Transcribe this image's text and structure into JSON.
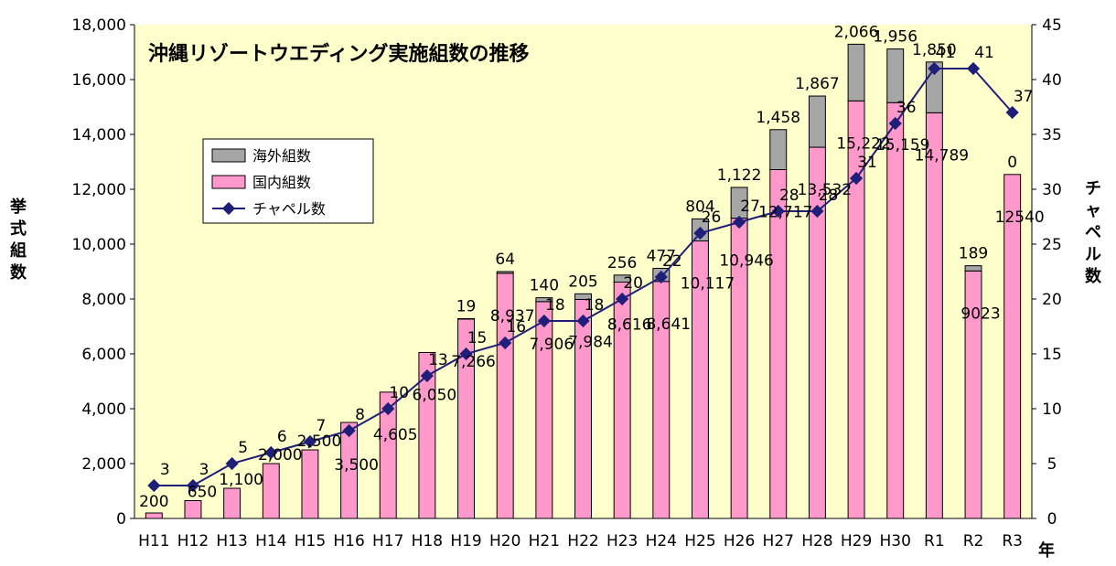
{
  "chart_data": {
    "type": "bar",
    "title": "沖縄リゾートウエディング実施組数の推移",
    "xlabel": "年",
    "ylabel_left": "挙式組数",
    "ylabel_right": "チャペル数",
    "categories": [
      "H11",
      "H12",
      "H13",
      "H14",
      "H15",
      "H16",
      "H17",
      "H18",
      "H19",
      "H20",
      "H21",
      "H22",
      "H23",
      "H24",
      "H25",
      "H26",
      "H27",
      "H28",
      "H29",
      "H30",
      "R1",
      "R2",
      "R3"
    ],
    "ylim_left": [
      0,
      18000
    ],
    "yticks_left": [
      "0",
      "2,000",
      "4,000",
      "6,000",
      "8,000",
      "10,000",
      "12,000",
      "14,000",
      "16,000",
      "18,000"
    ],
    "ylim_right": [
      0,
      45
    ],
    "yticks_right": [
      "0",
      "5",
      "10",
      "15",
      "20",
      "25",
      "30",
      "35",
      "40",
      "45"
    ],
    "series": [
      {
        "name": "国内組数",
        "color": "#ff99cc",
        "values": [
          200,
          650,
          1100,
          2000,
          2500,
          3500,
          4605,
          6050,
          7266,
          8937,
          7906,
          7984,
          8616,
          8641,
          10117,
          10946,
          12717,
          13532,
          15222,
          15159,
          14789,
          9023,
          12540
        ],
        "labels": [
          "200",
          "650",
          "1,100",
          "2,000",
          "2,500",
          "3,500",
          "4,605",
          "6,050",
          "7,266",
          "8,937",
          "7,906",
          "7,984",
          "8,616",
          "8,641",
          "10,117",
          "10,946",
          "12,717",
          "13,532",
          "15,222",
          "15,159",
          "14,789",
          "9023",
          "12540"
        ]
      },
      {
        "name": "海外組数",
        "color": "#a6a6a6",
        "values": [
          0,
          0,
          0,
          0,
          0,
          0,
          0,
          0,
          19,
          64,
          140,
          205,
          256,
          477,
          804,
          1122,
          1458,
          1867,
          2066,
          1956,
          1850,
          189,
          0
        ],
        "labels": [
          "",
          "",
          "",
          "",
          "",
          "",
          "",
          "",
          "19",
          "64",
          "140",
          "205",
          "256",
          "477",
          "804",
          "1,122",
          "1,458",
          "1,867",
          "2,066",
          "1,956",
          "1,850",
          "189",
          "0"
        ]
      },
      {
        "name": "チャペル数",
        "color": "#1f1f7a",
        "axis": "right",
        "values": [
          3,
          3,
          5,
          6,
          7,
          8,
          10,
          13,
          15,
          16,
          18,
          18,
          20,
          22,
          26,
          27,
          28,
          28,
          31,
          36,
          41,
          41,
          37
        ],
        "labels": [
          "3",
          "3",
          "5",
          "6",
          "7",
          "8",
          "10",
          "13",
          "15",
          "16",
          "18",
          "18",
          "20",
          "22",
          "26",
          "27",
          "28",
          "28",
          "31",
          "36",
          "41",
          "41",
          "37"
        ]
      }
    ],
    "legend": [
      "海外組数",
      "国内組数",
      "チャペル数"
    ],
    "legend_position": "upper-left",
    "plot_background": "#ffffcc"
  }
}
